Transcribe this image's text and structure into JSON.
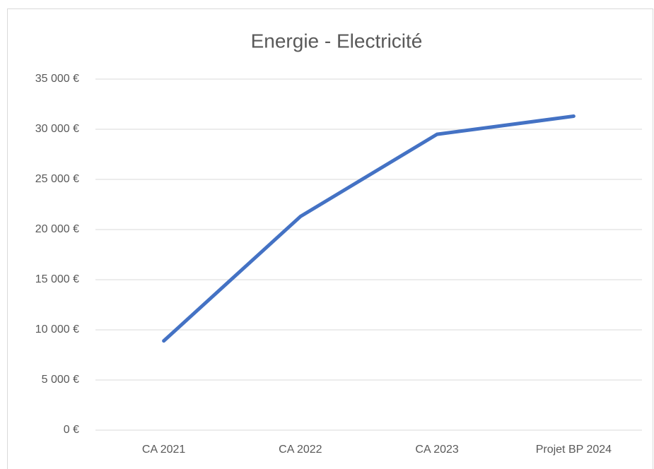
{
  "chart_data": {
    "type": "line",
    "title": "Energie - Electricité",
    "categories": [
      "CA 2021",
      "CA 2022",
      "CA 2023",
      "Projet BP 2024"
    ],
    "series": [
      {
        "name": "Energie - Electricité",
        "color": "#4472c4",
        "values": [
          8900,
          21300,
          29500,
          31300
        ]
      }
    ],
    "ylim": [
      0,
      35000
    ],
    "yticks": [
      {
        "value": 0,
        "label": "0 €"
      },
      {
        "value": 5000,
        "label": "5 000 €"
      },
      {
        "value": 10000,
        "label": "10 000 €"
      },
      {
        "value": 15000,
        "label": "15 000 €"
      },
      {
        "value": 20000,
        "label": "20 000 €"
      },
      {
        "value": 25000,
        "label": "25 000 €"
      },
      {
        "value": 30000,
        "label": "30 000 €"
      },
      {
        "value": 35000,
        "label": "35 000 €"
      }
    ],
    "grid": true
  }
}
